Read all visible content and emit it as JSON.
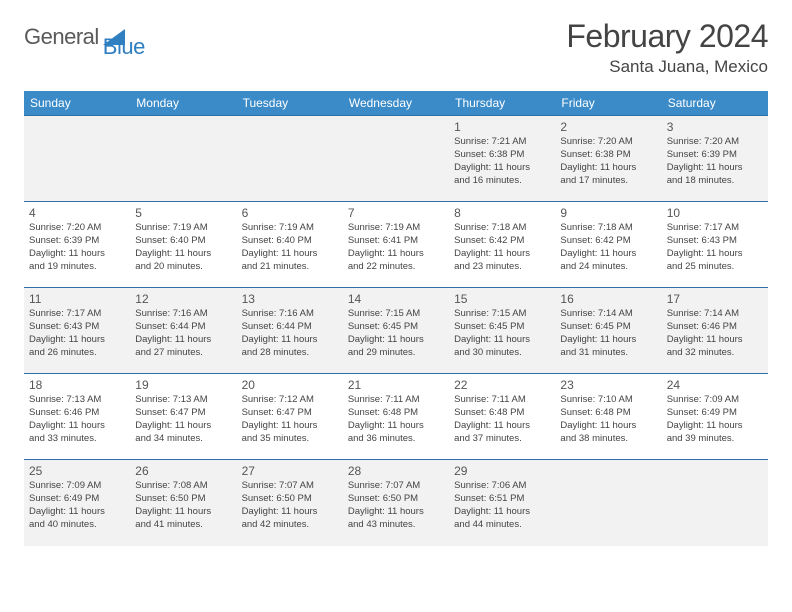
{
  "branding": {
    "name_part1": "General",
    "name_part2": "Blue",
    "logo_color": "#2f7fc1",
    "text_color": "#5a5a5a"
  },
  "header": {
    "title": "February 2024",
    "location": "Santa Juana, Mexico",
    "title_fontsize": 32,
    "location_fontsize": 17
  },
  "style": {
    "header_bg": "#3b8bc9",
    "header_text": "#ffffff",
    "row_border": "#2d6fa6",
    "odd_row_bg": "#f2f2f2",
    "even_row_bg": "#ffffff",
    "body_text": "#444444",
    "cell_fontsize": 9.5,
    "daynum_fontsize": 12,
    "day_header_fontsize": 12
  },
  "day_headers": [
    "Sunday",
    "Monday",
    "Tuesday",
    "Wednesday",
    "Thursday",
    "Friday",
    "Saturday"
  ],
  "weeks": [
    [
      null,
      null,
      null,
      null,
      {
        "day": "1",
        "sunrise": "Sunrise: 7:21 AM",
        "sunset": "Sunset: 6:38 PM",
        "daylight1": "Daylight: 11 hours",
        "daylight2": "and 16 minutes."
      },
      {
        "day": "2",
        "sunrise": "Sunrise: 7:20 AM",
        "sunset": "Sunset: 6:38 PM",
        "daylight1": "Daylight: 11 hours",
        "daylight2": "and 17 minutes."
      },
      {
        "day": "3",
        "sunrise": "Sunrise: 7:20 AM",
        "sunset": "Sunset: 6:39 PM",
        "daylight1": "Daylight: 11 hours",
        "daylight2": "and 18 minutes."
      }
    ],
    [
      {
        "day": "4",
        "sunrise": "Sunrise: 7:20 AM",
        "sunset": "Sunset: 6:39 PM",
        "daylight1": "Daylight: 11 hours",
        "daylight2": "and 19 minutes."
      },
      {
        "day": "5",
        "sunrise": "Sunrise: 7:19 AM",
        "sunset": "Sunset: 6:40 PM",
        "daylight1": "Daylight: 11 hours",
        "daylight2": "and 20 minutes."
      },
      {
        "day": "6",
        "sunrise": "Sunrise: 7:19 AM",
        "sunset": "Sunset: 6:40 PM",
        "daylight1": "Daylight: 11 hours",
        "daylight2": "and 21 minutes."
      },
      {
        "day": "7",
        "sunrise": "Sunrise: 7:19 AM",
        "sunset": "Sunset: 6:41 PM",
        "daylight1": "Daylight: 11 hours",
        "daylight2": "and 22 minutes."
      },
      {
        "day": "8",
        "sunrise": "Sunrise: 7:18 AM",
        "sunset": "Sunset: 6:42 PM",
        "daylight1": "Daylight: 11 hours",
        "daylight2": "and 23 minutes."
      },
      {
        "day": "9",
        "sunrise": "Sunrise: 7:18 AM",
        "sunset": "Sunset: 6:42 PM",
        "daylight1": "Daylight: 11 hours",
        "daylight2": "and 24 minutes."
      },
      {
        "day": "10",
        "sunrise": "Sunrise: 7:17 AM",
        "sunset": "Sunset: 6:43 PM",
        "daylight1": "Daylight: 11 hours",
        "daylight2": "and 25 minutes."
      }
    ],
    [
      {
        "day": "11",
        "sunrise": "Sunrise: 7:17 AM",
        "sunset": "Sunset: 6:43 PM",
        "daylight1": "Daylight: 11 hours",
        "daylight2": "and 26 minutes."
      },
      {
        "day": "12",
        "sunrise": "Sunrise: 7:16 AM",
        "sunset": "Sunset: 6:44 PM",
        "daylight1": "Daylight: 11 hours",
        "daylight2": "and 27 minutes."
      },
      {
        "day": "13",
        "sunrise": "Sunrise: 7:16 AM",
        "sunset": "Sunset: 6:44 PM",
        "daylight1": "Daylight: 11 hours",
        "daylight2": "and 28 minutes."
      },
      {
        "day": "14",
        "sunrise": "Sunrise: 7:15 AM",
        "sunset": "Sunset: 6:45 PM",
        "daylight1": "Daylight: 11 hours",
        "daylight2": "and 29 minutes."
      },
      {
        "day": "15",
        "sunrise": "Sunrise: 7:15 AM",
        "sunset": "Sunset: 6:45 PM",
        "daylight1": "Daylight: 11 hours",
        "daylight2": "and 30 minutes."
      },
      {
        "day": "16",
        "sunrise": "Sunrise: 7:14 AM",
        "sunset": "Sunset: 6:45 PM",
        "daylight1": "Daylight: 11 hours",
        "daylight2": "and 31 minutes."
      },
      {
        "day": "17",
        "sunrise": "Sunrise: 7:14 AM",
        "sunset": "Sunset: 6:46 PM",
        "daylight1": "Daylight: 11 hours",
        "daylight2": "and 32 minutes."
      }
    ],
    [
      {
        "day": "18",
        "sunrise": "Sunrise: 7:13 AM",
        "sunset": "Sunset: 6:46 PM",
        "daylight1": "Daylight: 11 hours",
        "daylight2": "and 33 minutes."
      },
      {
        "day": "19",
        "sunrise": "Sunrise: 7:13 AM",
        "sunset": "Sunset: 6:47 PM",
        "daylight1": "Daylight: 11 hours",
        "daylight2": "and 34 minutes."
      },
      {
        "day": "20",
        "sunrise": "Sunrise: 7:12 AM",
        "sunset": "Sunset: 6:47 PM",
        "daylight1": "Daylight: 11 hours",
        "daylight2": "and 35 minutes."
      },
      {
        "day": "21",
        "sunrise": "Sunrise: 7:11 AM",
        "sunset": "Sunset: 6:48 PM",
        "daylight1": "Daylight: 11 hours",
        "daylight2": "and 36 minutes."
      },
      {
        "day": "22",
        "sunrise": "Sunrise: 7:11 AM",
        "sunset": "Sunset: 6:48 PM",
        "daylight1": "Daylight: 11 hours",
        "daylight2": "and 37 minutes."
      },
      {
        "day": "23",
        "sunrise": "Sunrise: 7:10 AM",
        "sunset": "Sunset: 6:48 PM",
        "daylight1": "Daylight: 11 hours",
        "daylight2": "and 38 minutes."
      },
      {
        "day": "24",
        "sunrise": "Sunrise: 7:09 AM",
        "sunset": "Sunset: 6:49 PM",
        "daylight1": "Daylight: 11 hours",
        "daylight2": "and 39 minutes."
      }
    ],
    [
      {
        "day": "25",
        "sunrise": "Sunrise: 7:09 AM",
        "sunset": "Sunset: 6:49 PM",
        "daylight1": "Daylight: 11 hours",
        "daylight2": "and 40 minutes."
      },
      {
        "day": "26",
        "sunrise": "Sunrise: 7:08 AM",
        "sunset": "Sunset: 6:50 PM",
        "daylight1": "Daylight: 11 hours",
        "daylight2": "and 41 minutes."
      },
      {
        "day": "27",
        "sunrise": "Sunrise: 7:07 AM",
        "sunset": "Sunset: 6:50 PM",
        "daylight1": "Daylight: 11 hours",
        "daylight2": "and 42 minutes."
      },
      {
        "day": "28",
        "sunrise": "Sunrise: 7:07 AM",
        "sunset": "Sunset: 6:50 PM",
        "daylight1": "Daylight: 11 hours",
        "daylight2": "and 43 minutes."
      },
      {
        "day": "29",
        "sunrise": "Sunrise: 7:06 AM",
        "sunset": "Sunset: 6:51 PM",
        "daylight1": "Daylight: 11 hours",
        "daylight2": "and 44 minutes."
      },
      null,
      null
    ]
  ]
}
